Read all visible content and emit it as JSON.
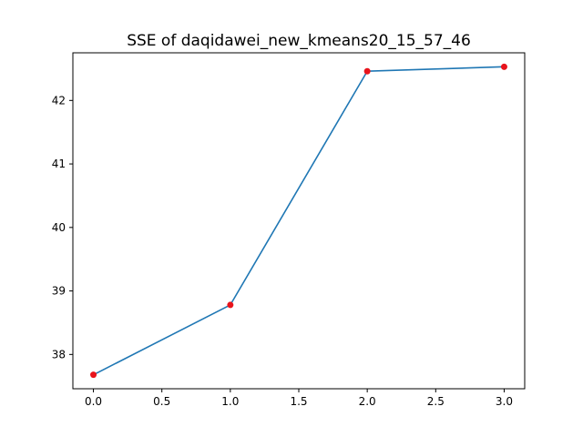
{
  "chart_data": {
    "type": "line",
    "title": "SSE of daqidawei_new_kmeans20_15_57_46",
    "xlabel": "",
    "ylabel": "",
    "x": [
      0,
      1,
      2,
      3
    ],
    "series": [
      {
        "values": [
          37.68,
          38.78,
          42.46,
          42.53
        ],
        "line_color": "#1f77b4",
        "marker_color": "#e8141c"
      }
    ],
    "xlim": [
      -0.15,
      3.15
    ],
    "ylim": [
      37.46,
      42.75
    ],
    "xticks": [
      0.0,
      0.5,
      1.0,
      1.5,
      2.0,
      2.5,
      3.0
    ],
    "xtick_labels": [
      "0.0",
      "0.5",
      "1.0",
      "1.5",
      "2.0",
      "2.5",
      "3.0"
    ],
    "yticks": [
      38,
      39,
      40,
      41,
      42
    ],
    "ytick_labels": [
      "38",
      "39",
      "40",
      "41",
      "42"
    ],
    "grid": false,
    "legend": "none"
  }
}
